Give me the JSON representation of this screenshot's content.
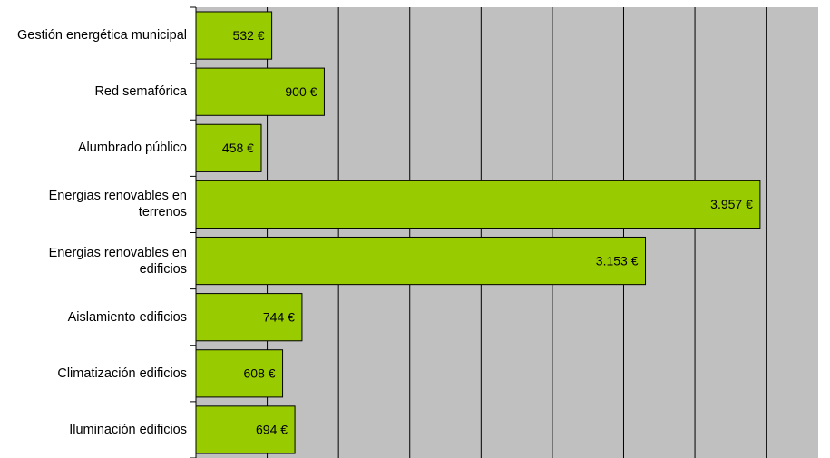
{
  "chart_data": {
    "type": "barh",
    "categories": [
      "Gestión energética municipal",
      "Red semafórica",
      "Alumbrado público",
      "Energias renovables en terrenos",
      "Energias renovables en edificios",
      "Aislamiento edificios",
      "Climatización edificios",
      "Iluminación edificios"
    ],
    "values": [
      532,
      900,
      458,
      3957,
      3153,
      744,
      608,
      694
    ],
    "value_labels": [
      "532 €",
      "900 €",
      "458 €",
      "3.957 €",
      "3.153 €",
      "744 €",
      "608 €",
      "694 €"
    ],
    "color": "#99cc00",
    "xlim": [
      0,
      4365
    ],
    "xticks": [
      0,
      500,
      1000,
      1500,
      2000,
      2500,
      3000,
      3500,
      4000
    ],
    "grid": true
  }
}
